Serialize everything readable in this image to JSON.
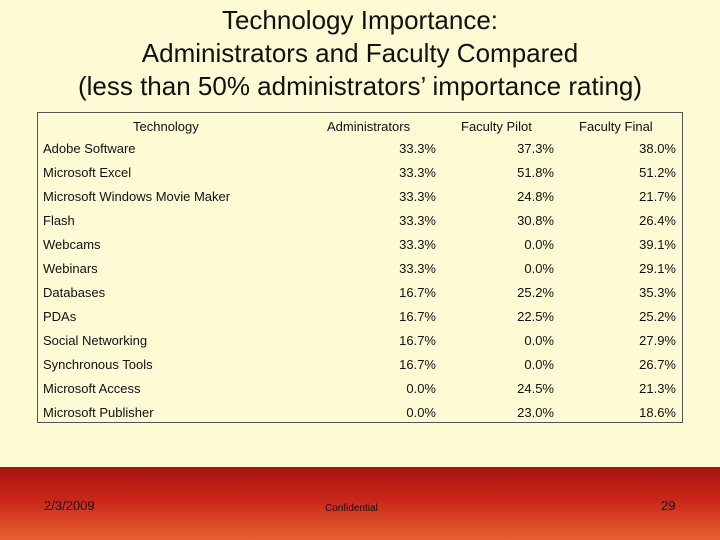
{
  "title": {
    "line1": "Technology Importance:",
    "line2": "Administrators and Faculty Compared",
    "line3": "(less than 50% administrators’ importance rating)"
  },
  "table": {
    "headers": [
      "Technology",
      "Administrators",
      "Faculty Pilot",
      "Faculty Final"
    ],
    "rows": [
      [
        "Adobe Software",
        "33.3%",
        "37.3%",
        "38.0%"
      ],
      [
        "Microsoft Excel",
        "33.3%",
        "51.8%",
        "51.2%"
      ],
      [
        "Microsoft Windows Movie Maker",
        "33.3%",
        "24.8%",
        "21.7%"
      ],
      [
        "Flash",
        "33.3%",
        "30.8%",
        "26.4%"
      ],
      [
        "Webcams",
        "33.3%",
        "0.0%",
        "39.1%"
      ],
      [
        "Webinars",
        "33.3%",
        "0.0%",
        "29.1%"
      ],
      [
        "Databases",
        "16.7%",
        "25.2%",
        "35.3%"
      ],
      [
        "PDAs",
        "16.7%",
        "22.5%",
        "25.2%"
      ],
      [
        "Social Networking",
        "16.7%",
        "0.0%",
        "27.9%"
      ],
      [
        "Synchronous Tools",
        "16.7%",
        "0.0%",
        "26.7%"
      ],
      [
        "Microsoft Access",
        "0.0%",
        "24.5%",
        "21.3%"
      ],
      [
        "Microsoft Publisher",
        "0.0%",
        "23.0%",
        "18.6%"
      ]
    ]
  },
  "footer": {
    "date": "2/3/2009",
    "confidential": "Confidential",
    "page_number": "29"
  },
  "colors": {
    "background": "#fdfbd4",
    "footer_band": "#c9261a"
  }
}
